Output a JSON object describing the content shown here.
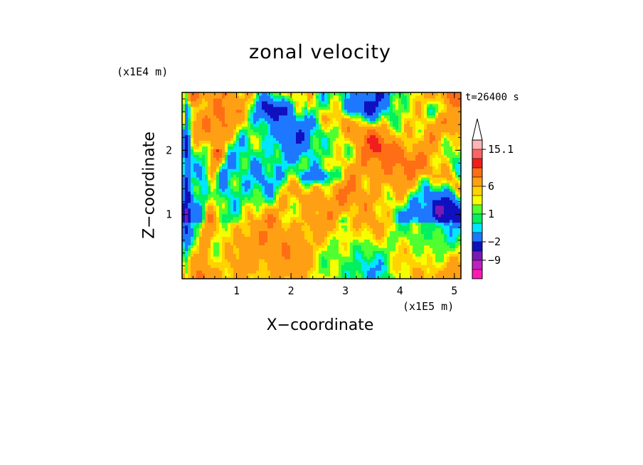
{
  "chart_data": {
    "type": "heatmap",
    "title": "zonal velocity",
    "xlabel": "X−coordinate",
    "ylabel": "Z−coordinate",
    "x_multiplier": "(x1E5 m)",
    "y_multiplier": "(x1E4 m)",
    "time_label": "t=26400 s",
    "xlim": [
      0,
      5.12
    ],
    "ylim": [
      0,
      2.9
    ],
    "x_ticks": [
      "1",
      "2",
      "3",
      "4",
      "5"
    ],
    "x_tick_values": [
      1,
      2,
      3,
      4,
      5
    ],
    "y_ticks": [
      "1",
      "2"
    ],
    "y_tick_values": [
      1,
      2
    ],
    "colorbar": {
      "levels": [
        -15.1,
        -12,
        -9,
        -6,
        -2,
        -1,
        0,
        1,
        2,
        3,
        6,
        9,
        12,
        15.1
      ],
      "labels": [
        "15.1",
        "6",
        "1",
        "−2",
        "−9"
      ],
      "colors": [
        "#ff1ab4",
        "#c020c0",
        "#7a1ab4",
        "#1010c0",
        "#1e78ff",
        "#00e6ff",
        "#00f060",
        "#50ff30",
        "#f5ff00",
        "#ffd200",
        "#ffa014",
        "#ff6e14",
        "#f01e1e",
        "#ff6464",
        "#ffb4b4"
      ]
    },
    "grid": false
  }
}
